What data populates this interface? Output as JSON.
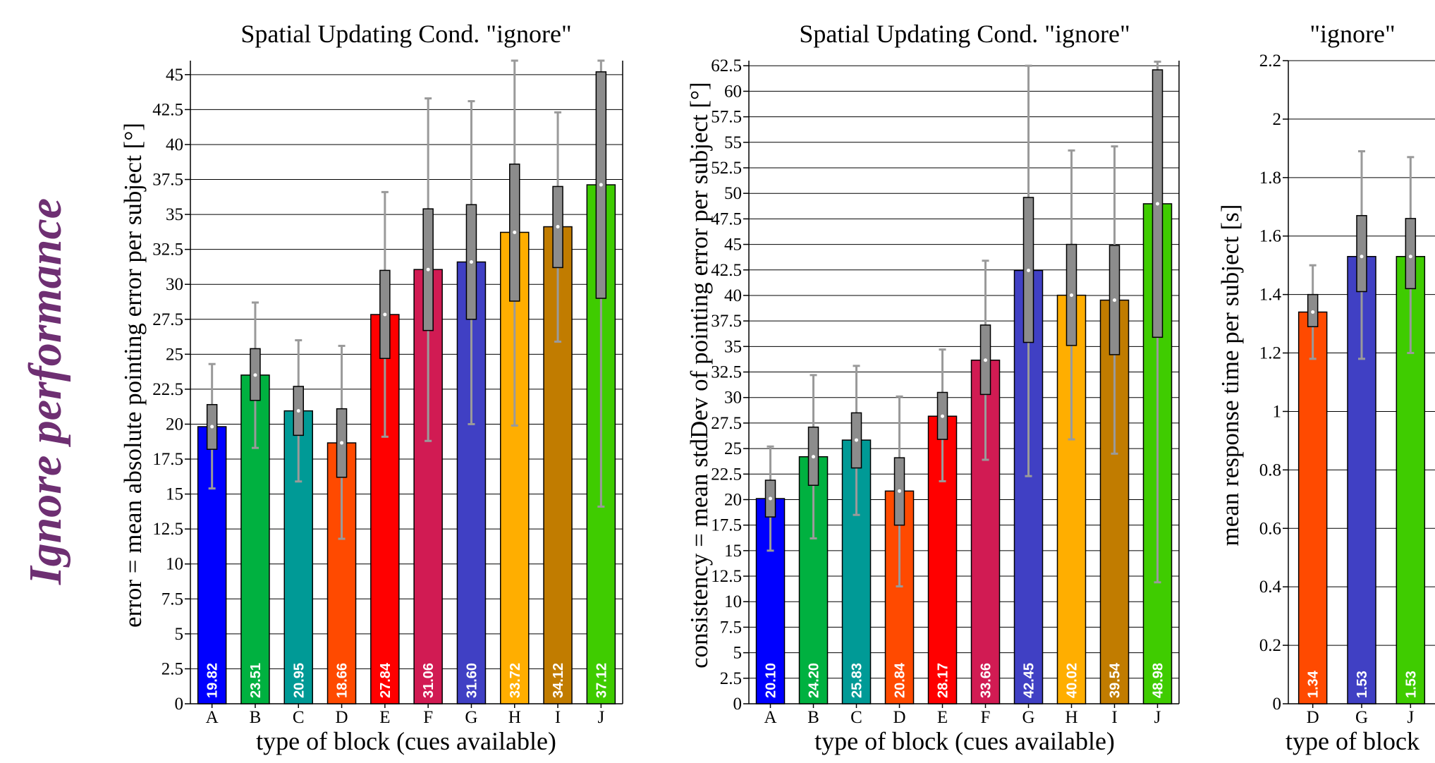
{
  "page_label": "Ignore performance",
  "chart_data": [
    {
      "type": "bar",
      "title": "Spatial Updating Cond. \"ignore\"",
      "xlabel": "type of block (cues available)",
      "ylabel": "error = mean absolute pointing error per subject [°]",
      "categories": [
        "A",
        "B",
        "C",
        "D",
        "E",
        "F",
        "G",
        "H",
        "I",
        "J"
      ],
      "values": [
        19.82,
        23.51,
        20.95,
        18.66,
        27.84,
        31.06,
        31.6,
        33.72,
        34.12,
        37.12
      ],
      "value_labels": [
        "19.82",
        "23.51",
        "20.95",
        "18.66",
        "27.84",
        "31.06",
        "31.60",
        "33.72",
        "34.12",
        "37.12"
      ],
      "colors": [
        "#0000ff",
        "#00b140",
        "#009a96",
        "#ff4a00",
        "#ff0000",
        "#d11b53",
        "#4040c4",
        "#ffae00",
        "#c17c00",
        "#3fcc00"
      ],
      "box_low": [
        18.2,
        21.7,
        19.2,
        16.2,
        24.7,
        26.7,
        27.5,
        28.8,
        31.2,
        29.0
      ],
      "box_high": [
        21.4,
        25.4,
        22.7,
        21.1,
        31.0,
        35.4,
        35.7,
        38.6,
        37.0,
        45.2
      ],
      "whisker_low": [
        15.4,
        18.3,
        15.9,
        11.8,
        19.1,
        18.8,
        20.0,
        19.9,
        25.9,
        14.1
      ],
      "whisker_high": [
        24.3,
        28.7,
        26.0,
        25.6,
        36.6,
        43.3,
        43.1,
        46.0,
        42.3,
        46.0
      ],
      "ylim": [
        0,
        46
      ],
      "yticks": [
        "0",
        "2.5",
        "5",
        "7.5",
        "10",
        "12.5",
        "15",
        "17.5",
        "20",
        "22.5",
        "25",
        "27.5",
        "30",
        "32.5",
        "35",
        "37.5",
        "40",
        "42.5",
        "45"
      ],
      "ytick_values": [
        0,
        2.5,
        5,
        7.5,
        10,
        12.5,
        15,
        17.5,
        20,
        22.5,
        25,
        27.5,
        30,
        32.5,
        35,
        37.5,
        40,
        42.5,
        45
      ],
      "grid": true
    },
    {
      "type": "bar",
      "title": "Spatial Updating Cond. \"ignore\"",
      "xlabel": "type of block (cues available)",
      "ylabel": "consistency = mean stdDev of pointing error per subject [°]",
      "categories": [
        "A",
        "B",
        "C",
        "D",
        "E",
        "F",
        "G",
        "H",
        "I",
        "J"
      ],
      "values": [
        20.1,
        24.2,
        25.83,
        20.84,
        28.17,
        33.66,
        42.45,
        40.02,
        39.54,
        48.98
      ],
      "value_labels": [
        "20.10",
        "24.20",
        "25.83",
        "20.84",
        "28.17",
        "33.66",
        "42.45",
        "40.02",
        "39.54",
        "48.98"
      ],
      "colors": [
        "#0000ff",
        "#00b140",
        "#009a96",
        "#ff4a00",
        "#ff0000",
        "#d11b53",
        "#4040c4",
        "#ffae00",
        "#c17c00",
        "#3fcc00"
      ],
      "box_low": [
        18.3,
        21.4,
        23.1,
        17.5,
        25.9,
        30.3,
        35.4,
        35.1,
        34.2,
        35.9
      ],
      "box_high": [
        21.9,
        27.1,
        28.5,
        24.1,
        30.5,
        37.1,
        49.6,
        45.0,
        44.9,
        62.1
      ],
      "whisker_low": [
        15.0,
        16.2,
        18.5,
        11.5,
        21.8,
        23.9,
        22.3,
        25.9,
        24.5,
        11.9
      ],
      "whisker_high": [
        25.2,
        32.2,
        33.1,
        30.1,
        34.7,
        43.4,
        62.5,
        54.2,
        54.6,
        62.9
      ],
      "ylim": [
        0,
        63
      ],
      "yticks": [
        "0",
        "2.5",
        "5",
        "7.5",
        "10",
        "12.5",
        "15",
        "17.5",
        "20",
        "22.5",
        "25",
        "27.5",
        "30",
        "32.5",
        "35",
        "37.5",
        "40",
        "42.5",
        "45",
        "47.5",
        "50",
        "52.5",
        "55",
        "57.5",
        "60",
        "62.5"
      ],
      "ytick_values": [
        0,
        2.5,
        5,
        7.5,
        10,
        12.5,
        15,
        17.5,
        20,
        22.5,
        25,
        27.5,
        30,
        32.5,
        35,
        37.5,
        40,
        42.5,
        45,
        47.5,
        50,
        52.5,
        55,
        57.5,
        60,
        62.5
      ],
      "grid": true
    },
    {
      "type": "bar",
      "title": "\"ignore\"",
      "xlabel": "type of block",
      "ylabel": "mean response time per subject [s]",
      "categories": [
        "D",
        "G",
        "J"
      ],
      "values": [
        1.34,
        1.53,
        1.53
      ],
      "value_labels": [
        "1.34",
        "1.53",
        "1.53"
      ],
      "colors": [
        "#ff4a00",
        "#4040c4",
        "#3fcc00"
      ],
      "box_low": [
        1.29,
        1.41,
        1.42
      ],
      "box_high": [
        1.4,
        1.67,
        1.66
      ],
      "whisker_low": [
        1.18,
        1.18,
        1.2
      ],
      "whisker_high": [
        1.5,
        1.89,
        1.87
      ],
      "ylim": [
        0,
        2.2
      ],
      "yticks": [
        "0",
        "0.2",
        "0.4",
        "0.6",
        "0.8",
        "1",
        "1.2",
        "1.4",
        "1.6",
        "1.8",
        "2",
        "2.2"
      ],
      "ytick_values": [
        0,
        0.2,
        0.4,
        0.6,
        0.8,
        1,
        1.2,
        1.4,
        1.6,
        1.8,
        2,
        2.2
      ],
      "grid": true
    }
  ]
}
